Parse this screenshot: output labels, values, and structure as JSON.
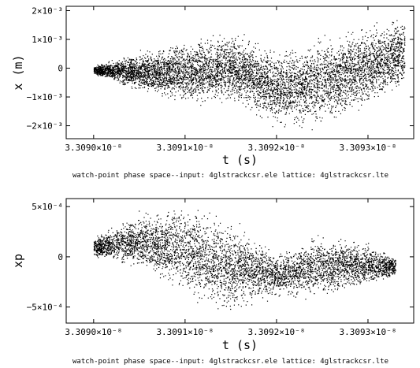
{
  "caption": "watch-point phase space--input: 4glstrackcsr.ele   lattice: 4glstrackcsr.lte",
  "colors": {
    "ink": "#000000",
    "background": "#ffffff"
  },
  "chart_data": [
    {
      "type": "scatter",
      "title": "",
      "xlabel": "t (s)",
      "ylabel": "x (m)",
      "xlim": [
        3.30897e-08,
        3.30935e-08
      ],
      "ylim": [
        -0.00245,
        0.00215
      ],
      "xticks": [
        {
          "value": 3.309e-08,
          "label": "3.3090×10⁻⁸"
        },
        {
          "value": 3.3091e-08,
          "label": "3.3091×10⁻⁸"
        },
        {
          "value": 3.3092e-08,
          "label": "3.3092×10⁻⁸"
        },
        {
          "value": 3.3093e-08,
          "label": "3.3093×10⁻⁸"
        }
      ],
      "yticks": [
        {
          "value": 0.002,
          "label": "2×10⁻³"
        },
        {
          "value": 0.001,
          "label": "1×10⁻³"
        },
        {
          "value": 0,
          "label": "0"
        },
        {
          "value": -0.001,
          "label": "−1×10⁻³"
        },
        {
          "value": -0.002,
          "label": "−2×10⁻³"
        }
      ],
      "grid": false,
      "distribution": {
        "t_range": [
          3.309e-08,
          3.30934e-08
        ],
        "upper_boundary": [
          [
            3.309e-08,
            0.0001
          ],
          [
            3.30905e-08,
            0.0006
          ],
          [
            3.3091e-08,
            0.001
          ],
          [
            3.30915e-08,
            0.0013
          ],
          [
            3.3092e-08,
            0.0007
          ],
          [
            3.30925e-08,
            0.0012
          ],
          [
            3.3093e-08,
            0.0016
          ],
          [
            3.30934e-08,
            0.0019
          ]
        ],
        "lower_boundary": [
          [
            3.309e-08,
            -0.0002
          ],
          [
            3.30905e-08,
            -0.0009
          ],
          [
            3.3091e-08,
            -0.0013
          ],
          [
            3.30915e-08,
            -0.0012
          ],
          [
            3.3092e-08,
            -0.0021
          ],
          [
            3.30925e-08,
            -0.0021
          ],
          [
            3.3093e-08,
            -0.0014
          ],
          [
            3.30934e-08,
            -0.0008
          ]
        ]
      }
    },
    {
      "type": "scatter",
      "title": "",
      "xlabel": "t (s)",
      "ylabel": "xp",
      "xlim": [
        3.30897e-08,
        3.30935e-08
      ],
      "ylim": [
        -0.00066,
        0.00058
      ],
      "xticks": [
        {
          "value": 3.309e-08,
          "label": "3.3090×10⁻⁸"
        },
        {
          "value": 3.3091e-08,
          "label": "3.3091×10⁻⁸"
        },
        {
          "value": 3.3092e-08,
          "label": "3.3092×10⁻⁸"
        },
        {
          "value": 3.3093e-08,
          "label": "3.3093×10⁻⁸"
        }
      ],
      "yticks": [
        {
          "value": 0.0005,
          "label": "5×10⁻⁴"
        },
        {
          "value": 0,
          "label": "0"
        },
        {
          "value": -0.0005,
          "label": "−5×10⁻⁴"
        }
      ],
      "grid": false,
      "distribution": {
        "t_range": [
          3.309e-08,
          3.30933e-08
        ],
        "upper_boundary": [
          [
            3.309e-08,
            0.0002
          ],
          [
            3.30905e-08,
            0.00045
          ],
          [
            3.3091e-08,
            0.00054
          ],
          [
            3.30915e-08,
            0.00038
          ],
          [
            3.3092e-08,
            5e-05
          ],
          [
            3.30925e-08,
            0.00025
          ],
          [
            3.3093e-08,
            0.00015
          ],
          [
            3.30933e-08,
            0.0
          ]
        ],
        "lower_boundary": [
          [
            3.309e-08,
            0.0
          ],
          [
            3.30905e-08,
            -0.00015
          ],
          [
            3.3091e-08,
            -0.0004
          ],
          [
            3.30915e-08,
            -0.00058
          ],
          [
            3.3092e-08,
            -0.0004
          ],
          [
            3.30925e-08,
            -0.00042
          ],
          [
            3.3093e-08,
            -0.0003
          ],
          [
            3.30933e-08,
            -0.0002
          ]
        ]
      }
    }
  ]
}
